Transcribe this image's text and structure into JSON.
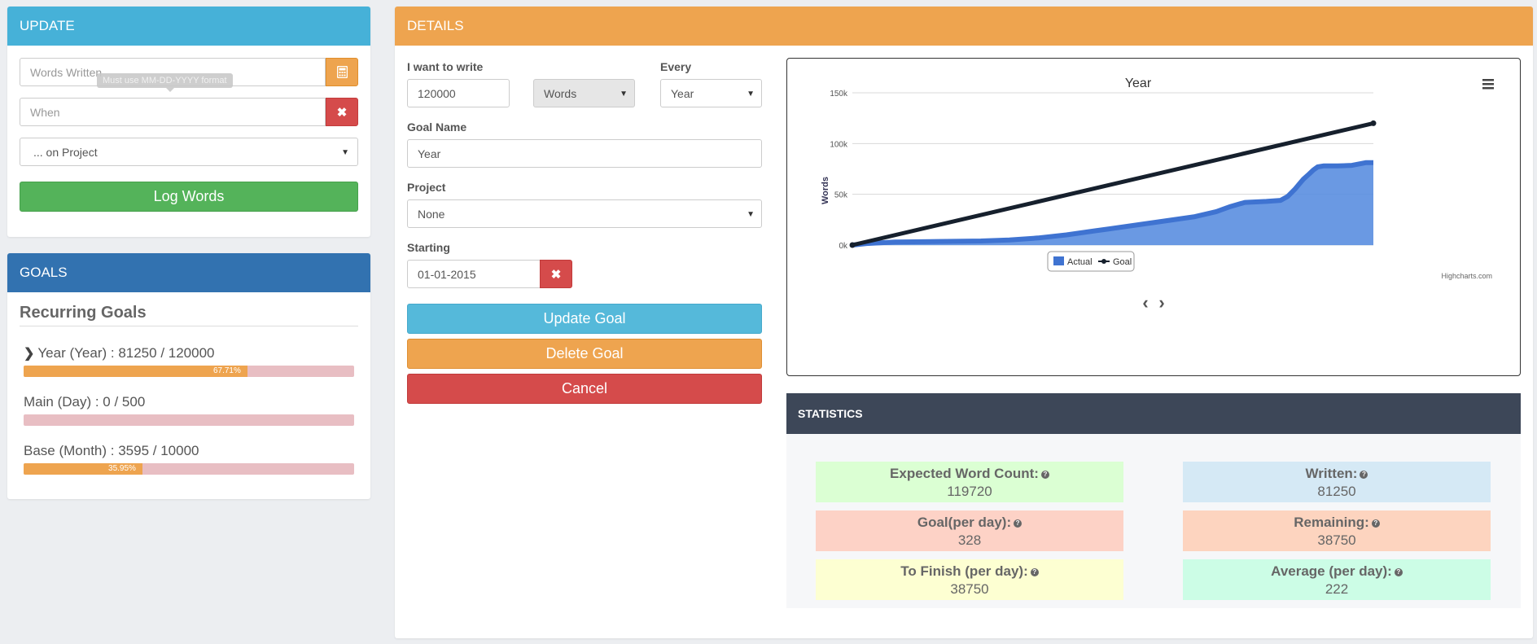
{
  "update": {
    "title": "UPDATE",
    "words_placeholder": "Words Written",
    "tooltip": "Must use MM-DD-YYYY format",
    "when_placeholder": "When",
    "project_select": "... on Project",
    "log_button": "Log Words"
  },
  "goals": {
    "title": "GOALS",
    "section": "Recurring Goals",
    "items": [
      {
        "label": "Year (Year) : 81250 / 120000",
        "percent": 67.71,
        "percent_label": "67.71%"
      },
      {
        "label": "Main (Day) : 0 / 500",
        "percent": 0,
        "percent_label": ""
      },
      {
        "label": "Base (Month) : 3595 / 10000",
        "percent": 35.95,
        "percent_label": "35.95%"
      }
    ]
  },
  "details": {
    "title": "DETAILS",
    "i_want_label": "I want to write",
    "amount_value": "120000",
    "unit_value": "Words",
    "every_label": "Every",
    "every_value": "Year",
    "goal_name_label": "Goal Name",
    "goal_name_value": "Year",
    "project_label": "Project",
    "project_value": "None",
    "starting_label": "Starting",
    "starting_value": "01-01-2015",
    "update_button": "Update Goal",
    "delete_button": "Delete Goal",
    "cancel_button": "Cancel"
  },
  "chart_data": {
    "type": "area",
    "title": "Year",
    "ylabel": "Words",
    "ylim": [
      0,
      150000
    ],
    "yticks": [
      "0k",
      "50k",
      "100k",
      "150k"
    ],
    "credits": "Highcharts.com",
    "legend_placement": "bottom-center",
    "x_range": [
      0,
      365
    ],
    "series": [
      {
        "name": "Actual",
        "type": "area",
        "color": "#3f73d1",
        "x": [
          0,
          10,
          30,
          60,
          90,
          110,
          130,
          150,
          170,
          180,
          200,
          220,
          240,
          255,
          265,
          275,
          290,
          300,
          305,
          310,
          313,
          316,
          320,
          323,
          326,
          330,
          340,
          350,
          360,
          365
        ],
        "y": [
          0,
          1500,
          3000,
          3500,
          4000,
          5000,
          7000,
          10000,
          14000,
          16000,
          20000,
          24000,
          28000,
          33000,
          38000,
          42000,
          43000,
          44000,
          48000,
          55000,
          60000,
          65000,
          70000,
          74000,
          77000,
          78000,
          78000,
          78500,
          81250,
          81250
        ]
      },
      {
        "name": "Goal",
        "type": "line",
        "color": "#16202d",
        "x": [
          0,
          365
        ],
        "y": [
          0,
          120000
        ]
      }
    ]
  },
  "chart_nav": {
    "prev": "‹",
    "next": "›"
  },
  "statistics": {
    "title": "STATISTICS",
    "expected_label": "Expected Word Count:",
    "expected_value": "119720",
    "written_label": "Written:",
    "written_value": "81250",
    "goal_day_label": "Goal(per day):",
    "goal_day_value": "328",
    "remaining_label": "Remaining:",
    "remaining_value": "38750",
    "finish_label": "To Finish (per day):",
    "finish_value": "38750",
    "average_label": "Average (per day):",
    "average_value": "222"
  },
  "colors": {
    "update_head": "#46b1d8",
    "goals_head": "#3272b0",
    "details_head": "#eea44f",
    "stat_expected": "#dbffd3",
    "stat_written": "#d5e9f5",
    "stat_goal_day": "#fdd2c6",
    "stat_remaining": "#fdd4bf",
    "stat_finish": "#fdffd2",
    "stat_average": "#ccfde6"
  }
}
